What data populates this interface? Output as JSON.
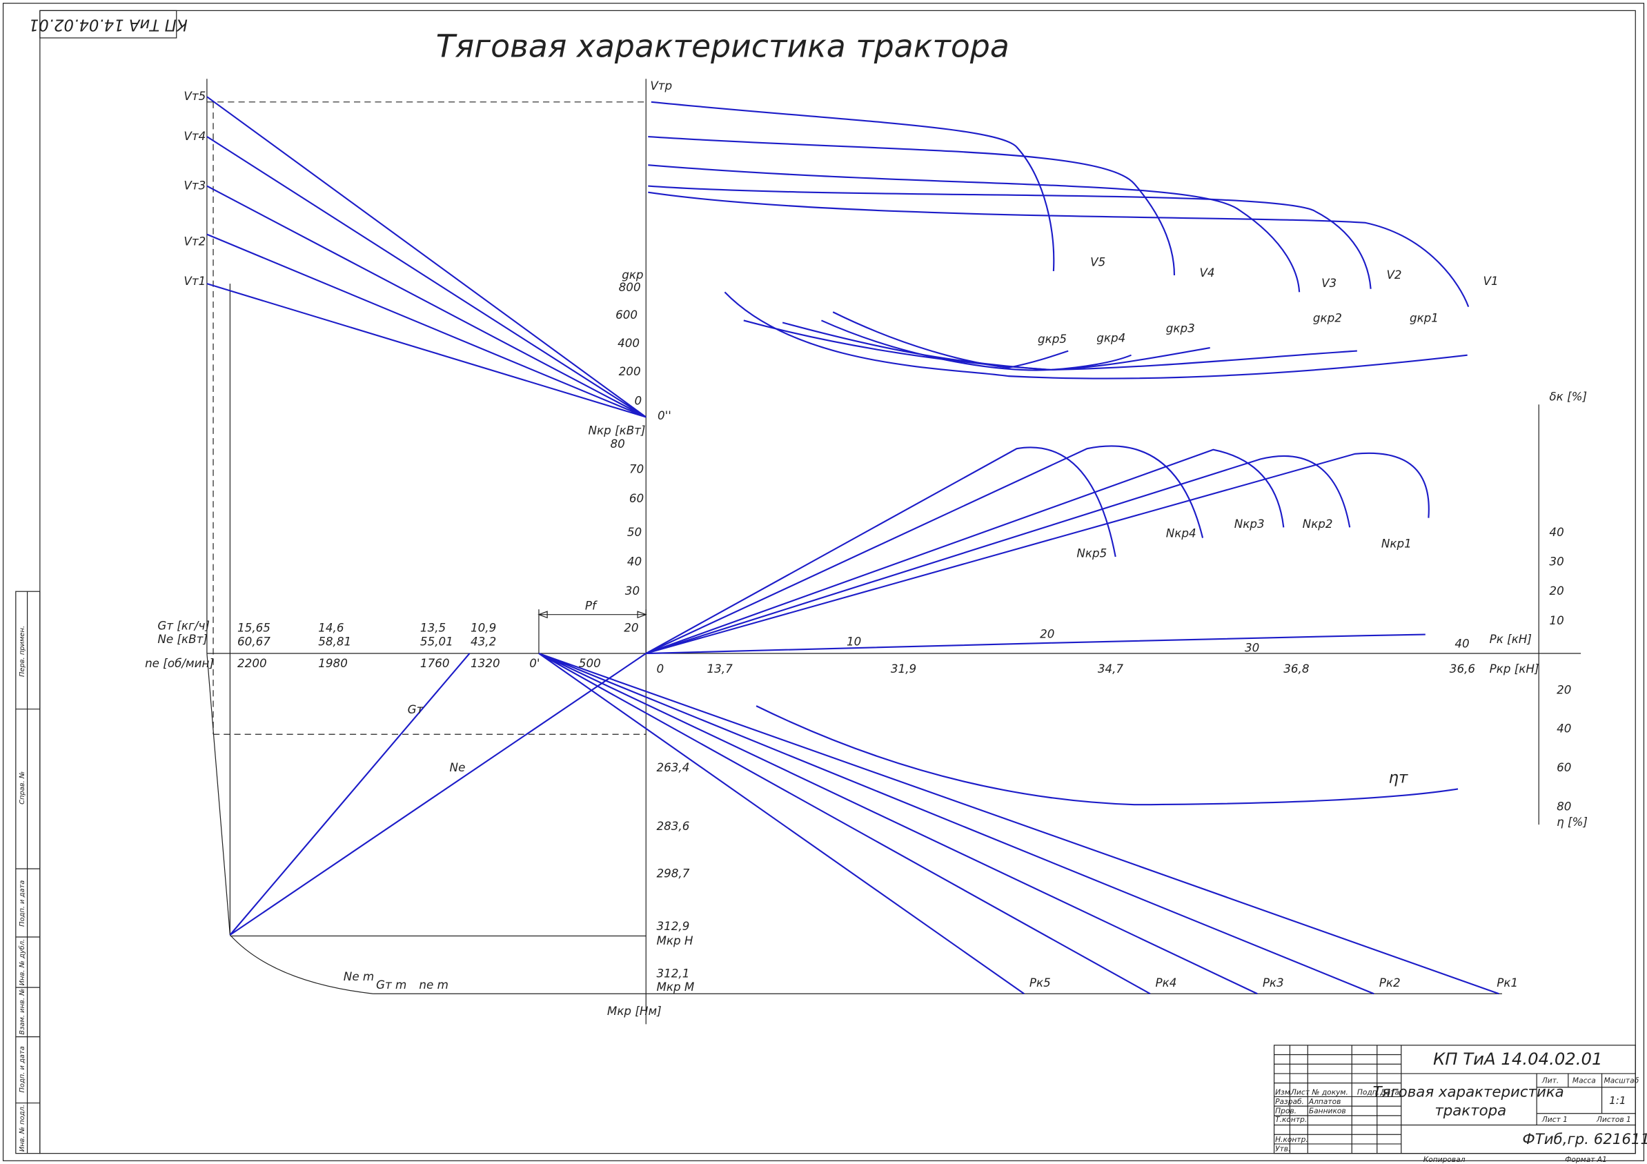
{
  "title": "Тяговая характеристика трактора",
  "stamp": "КП ТиА 14.04.02.01",
  "labels": [
    "Vт5",
    "Vт4",
    "Vт3",
    "Vт2",
    "Vт1",
    "Vтр",
    "gкр",
    "800",
    "600",
    "400",
    "200",
    "0",
    "0''",
    "Nкр [кВт]",
    "80",
    "70",
    "60",
    "50",
    "40",
    "30",
    "20",
    "Pf",
    "V5",
    "V4",
    "V3",
    "V2",
    "V1",
    "gкр5",
    "gкр4",
    "gкр3",
    "gкр2",
    "gкр1",
    "Nкр5",
    "Nкр4",
    "Nкр3",
    "Nкр2",
    "Nкр1",
    "δк [%]",
    "40",
    "30",
    "20",
    "10",
    "10",
    "20",
    "30",
    "40",
    "Pк [кН]",
    "0",
    "13,7",
    "31,9",
    "34,7",
    "36,8",
    "36,6",
    "Pкр [кН]",
    "Gт [кг/ч]",
    "Ne [кВт]",
    "nе [об/мин]",
    "15,65",
    "60,67",
    "14,6",
    "58,81",
    "13,5",
    "55,01",
    "10,9",
    "43,2",
    "2200",
    "1980",
    "1760",
    "1320",
    "0'",
    "500",
    "Gт",
    "Ne",
    "263,4",
    "283,6",
    "298,7",
    "312,9",
    "Mкр H",
    "312,1",
    "Mкр M",
    "Mкр [Нм]",
    "Ne m",
    "Gт m",
    "nе m",
    "Pк5",
    "Pк4",
    "Pк3",
    "Pк2",
    "Pк1",
    "ηт",
    "20",
    "40",
    "60",
    "80",
    "η [%]"
  ],
  "title_block": [
    "КП ТиА 14.04.02.01",
    "Тяговая характеристика",
    "трактора",
    "Изм.",
    "Лист",
    "№ докум.",
    "Подп.",
    "Дата",
    "Разраб.",
    "Алпатов",
    "Пров.",
    "Банников",
    "Т.контр.",
    "Н.контр.",
    "Утв.",
    "Лит.",
    "Масса",
    "Масштаб",
    "1:1",
    "Лист 1",
    "Листов 1",
    "ФТиб,гр. 621611",
    "Копировал",
    "Формат A1"
  ],
  "side_strip": [
    "Перв. примен.",
    "Справ. №",
    "Подп. и дата",
    "Инв. № дубл.",
    "Взам. инв. №",
    "Подп. и дата",
    "Инв. № подл."
  ]
}
